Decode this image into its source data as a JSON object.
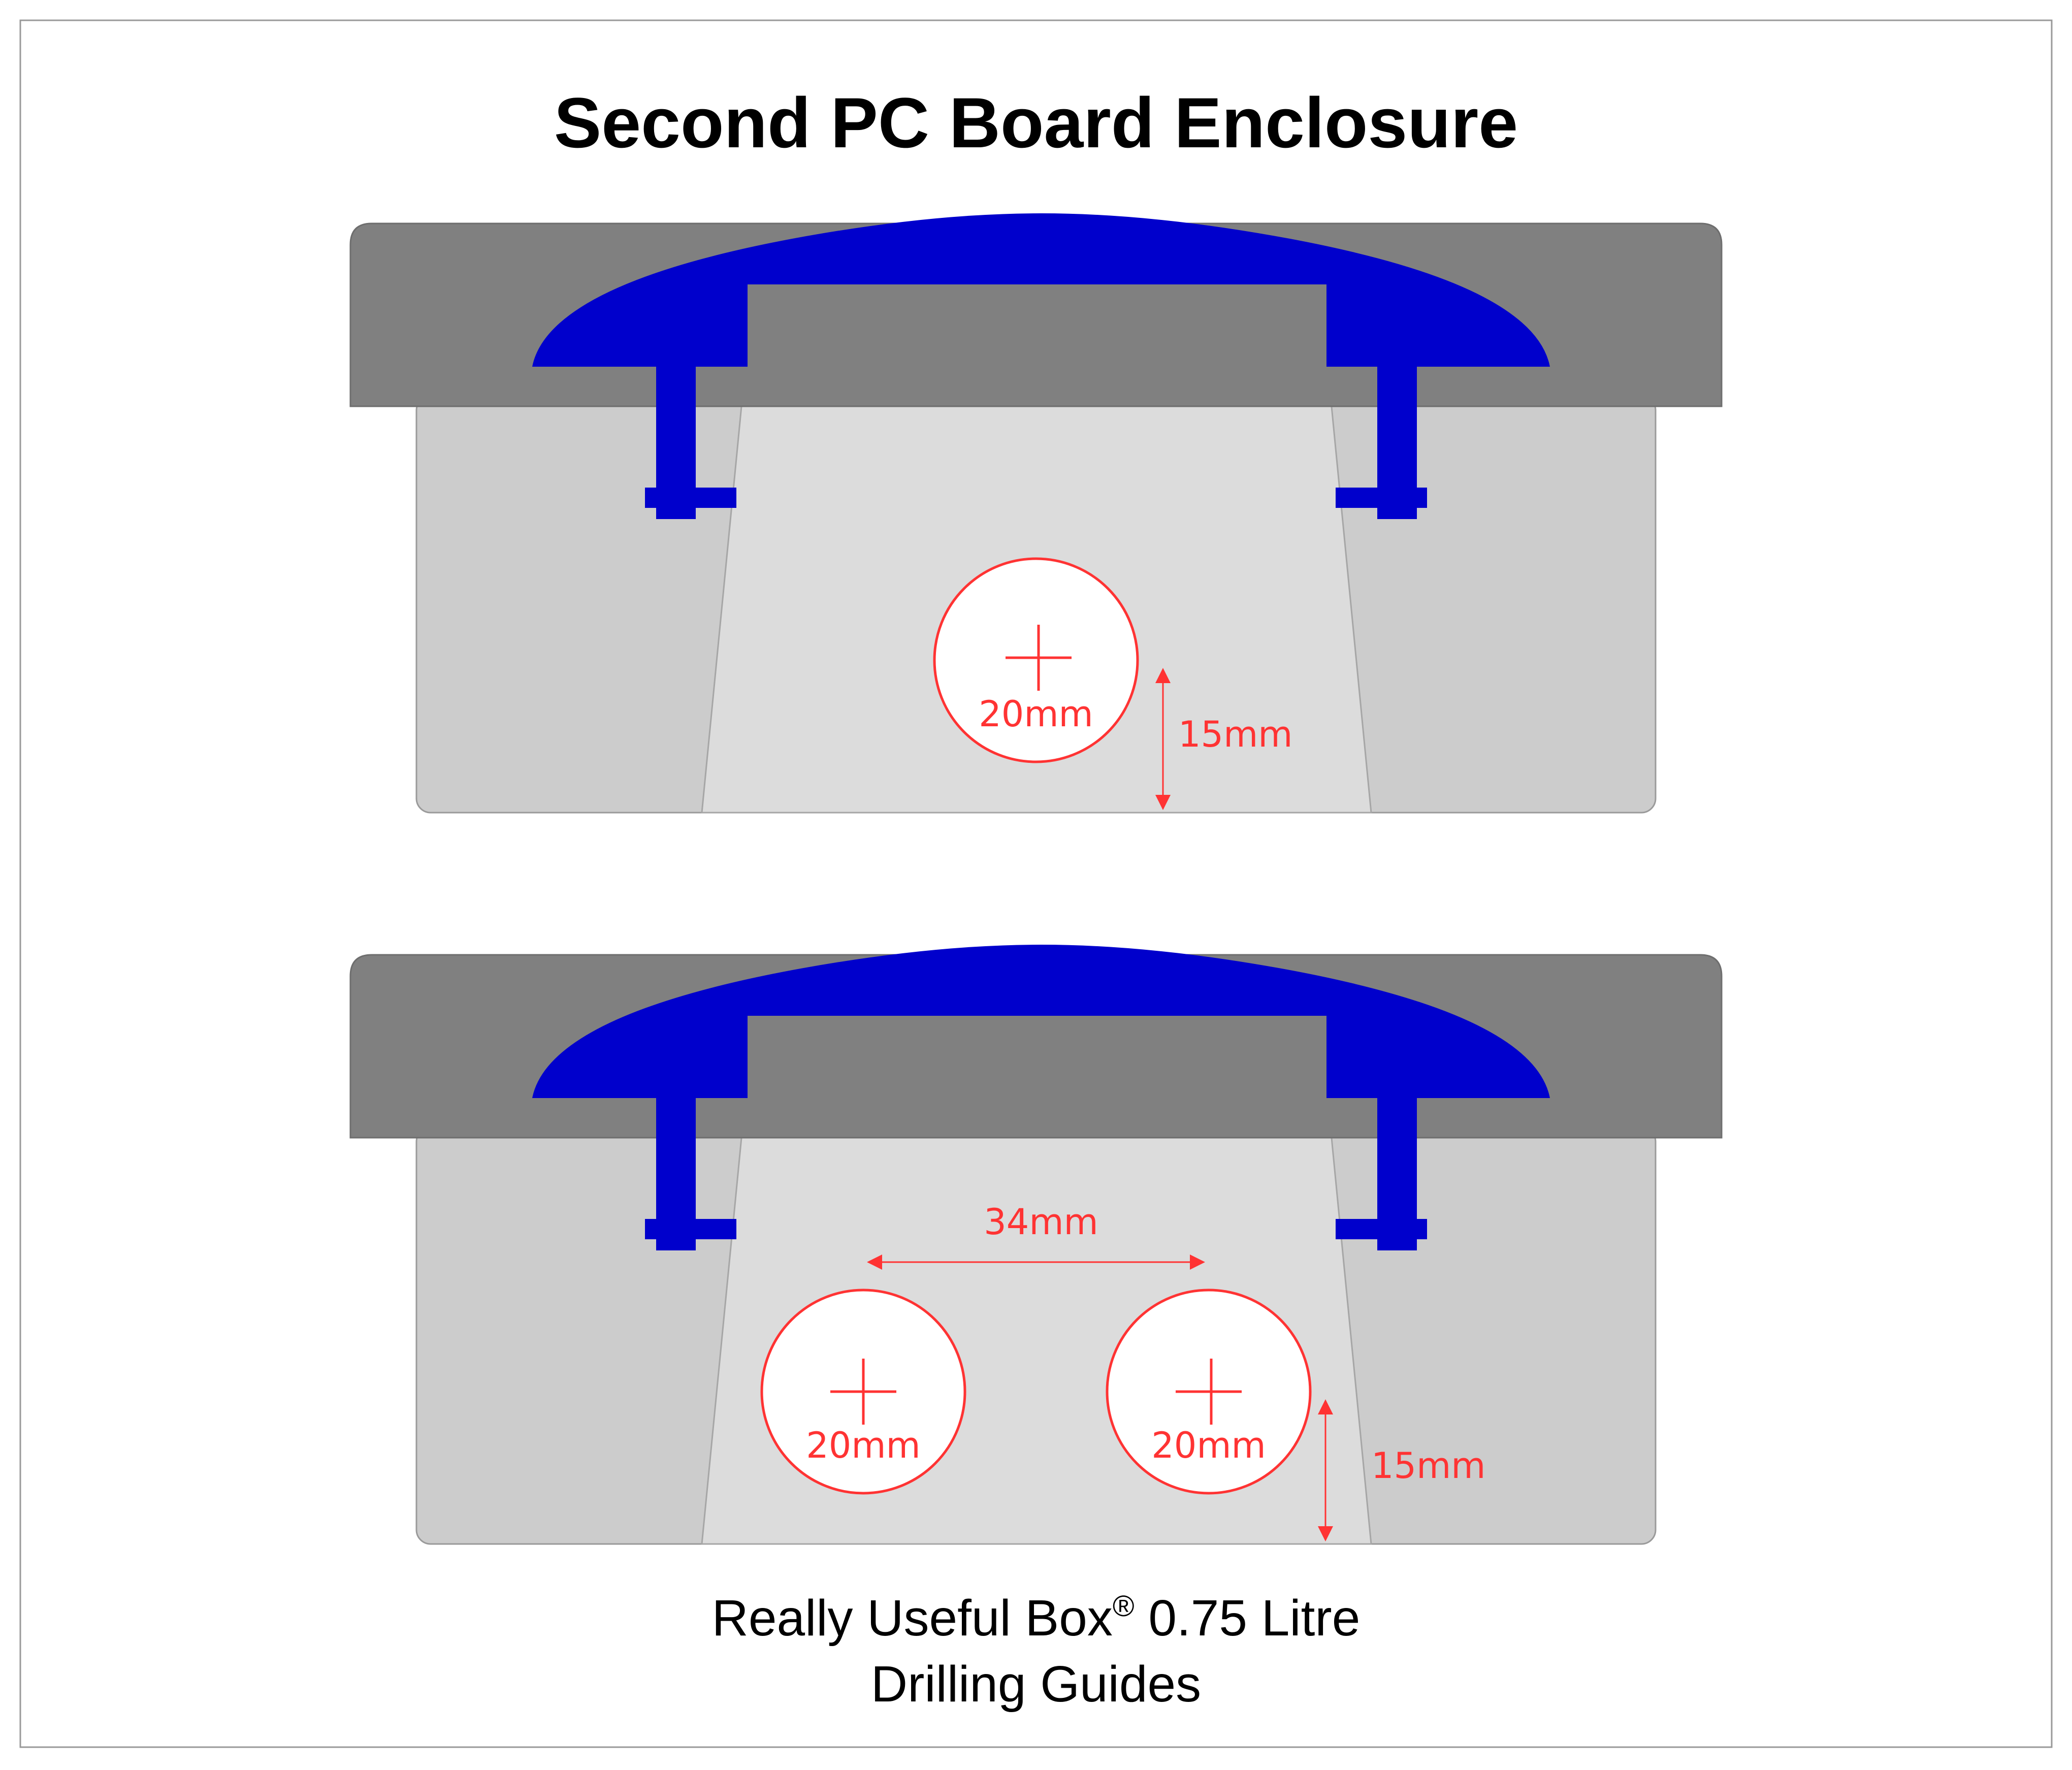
{
  "title": "Second PC Board Enclosure",
  "caption": {
    "line1": "Really Useful Box",
    "registered_mark": "®",
    "line1_suffix": " 0.75 Litre",
    "line2": "Drilling Guides"
  },
  "colors": {
    "frame": "#999999",
    "lid": "#808080",
    "box_body": "#cccccc",
    "box_face": "#dcdcdc",
    "clip": "#0000cc",
    "dimension": "#ff3333"
  },
  "guides": [
    {
      "name": "single-hole",
      "holes": [
        {
          "diameter_label": "20mm"
        }
      ],
      "height_label": "15mm"
    },
    {
      "name": "double-hole",
      "holes": [
        {
          "diameter_label": "20mm"
        },
        {
          "diameter_label": "20mm"
        }
      ],
      "spacing_label": "34mm",
      "height_label": "15mm"
    }
  ]
}
